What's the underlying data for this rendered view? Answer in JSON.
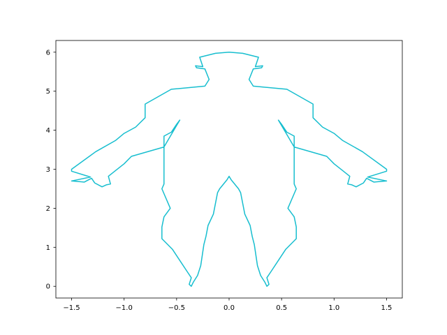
{
  "chart_data": {
    "type": "line",
    "title": "",
    "xlabel": "",
    "ylabel": "",
    "xlim": [
      -1.65,
      1.65
    ],
    "ylim": [
      -0.3,
      6.3
    ],
    "x_ticks": [
      {
        "value": -1.5,
        "label": "−1.5"
      },
      {
        "value": -1.0,
        "label": "−1.0"
      },
      {
        "value": -0.5,
        "label": "−0.5"
      },
      {
        "value": 0.0,
        "label": "0.0"
      },
      {
        "value": 0.5,
        "label": "0.5"
      },
      {
        "value": 1.0,
        "label": "1.0"
      },
      {
        "value": 1.5,
        "label": "1.5"
      }
    ],
    "y_ticks": [
      {
        "value": 0,
        "label": "0"
      },
      {
        "value": 1,
        "label": "1"
      },
      {
        "value": 2,
        "label": "2"
      },
      {
        "value": 3,
        "label": "3"
      },
      {
        "value": 4,
        "label": "4"
      },
      {
        "value": 5,
        "label": "5"
      },
      {
        "value": 6,
        "label": "6"
      }
    ],
    "grid": false,
    "legend": "none",
    "series": [
      {
        "color": "#17becf",
        "x": [
          0.0,
          0.13,
          0.28,
          0.25,
          0.32,
          0.31,
          0.23,
          0.19,
          0.23,
          0.55,
          0.8,
          0.8,
          0.89,
          1.0,
          1.08,
          1.27,
          1.5,
          1.5,
          1.32,
          1.5,
          1.38,
          1.31,
          1.28,
          1.21,
          1.17,
          1.13,
          1.15,
          1.08,
          1.0,
          0.93,
          0.62,
          0.47,
          0.5,
          0.55,
          0.62,
          0.62,
          0.62,
          0.64,
          0.56,
          0.62,
          0.64,
          0.64,
          0.54,
          0.4,
          0.36,
          0.38,
          0.36,
          0.34,
          0.3,
          0.27,
          0.24,
          0.22,
          0.2,
          0.15,
          0.11,
          0.09,
          0.02,
          0.0
        ],
        "y": [
          6.0,
          5.97,
          5.87,
          5.63,
          5.65,
          5.6,
          5.57,
          5.3,
          5.13,
          5.05,
          4.67,
          4.32,
          4.08,
          3.92,
          3.74,
          3.45,
          3.0,
          2.95,
          2.8,
          2.7,
          2.67,
          2.77,
          2.65,
          2.55,
          2.6,
          2.62,
          2.82,
          2.97,
          3.14,
          3.33,
          3.57,
          4.26,
          4.15,
          3.95,
          3.85,
          3.3,
          2.62,
          2.5,
          2.0,
          1.78,
          1.52,
          1.22,
          0.95,
          0.38,
          0.22,
          0.05,
          0.0,
          0.11,
          0.28,
          0.53,
          1.07,
          1.28,
          1.56,
          1.85,
          2.4,
          2.5,
          2.73,
          2.82
        ]
      }
    ]
  }
}
